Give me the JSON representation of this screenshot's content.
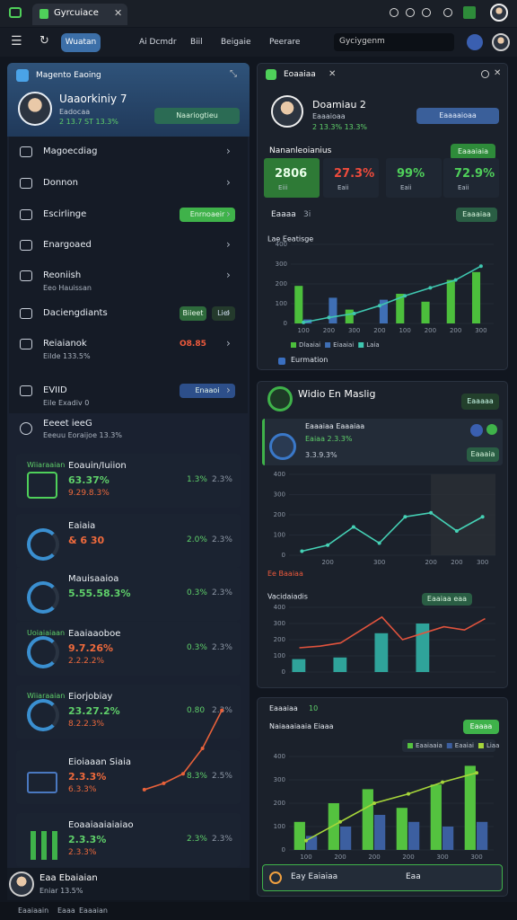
{
  "tab": {
    "title": "Gyrcuiace"
  },
  "nav": {
    "active": "Wuatan",
    "links": [
      "Ai Dcmdr",
      "Biil",
      "Beigaie",
      "Peerare"
    ],
    "search": "Gyciygenm"
  },
  "left_panel": {
    "title": "Magento Eaoing",
    "profile": {
      "name": "Uaaorkiniy 7",
      "line1": "Eadocaa",
      "line2": "2 13.7 ST 13.3%",
      "button": "Naariogtieu"
    },
    "menu": [
      {
        "label": "Magoecdiag"
      },
      {
        "label": "Donnon"
      },
      {
        "label": "Escirlinge",
        "badge": "Enrnoaeir"
      },
      {
        "label": "Enargoaed"
      },
      {
        "label": "Reoniish",
        "sub": "Eeo Hauissan"
      },
      {
        "label": "Daciengdiants",
        "badge": "Biieet",
        "badge2": "Liel"
      },
      {
        "label": "Reiaianok",
        "sub": "Eilde 133.5%",
        "value": "O8.85"
      },
      {
        "label": "EVIID",
        "sub": "Eile Exadiv 0",
        "badge": "Enaaoi"
      }
    ],
    "section": {
      "title": "Eeeet ieeG",
      "sub": "Eeeuu Eoraijoe 13.3%"
    },
    "cards": [
      {
        "tag": "Wiiaraaian",
        "title": "Eoauin/Iuiion",
        "value": "63.37%",
        "sub": "9.29.8.3%",
        "pct": "1.3%",
        "pct2": "2.3%"
      },
      {
        "title": "Eaiaia",
        "value": "& 6 30",
        "pct": "2.0%",
        "pct2": "2.3%"
      },
      {
        "title": "Mauisaaioa",
        "value": "5.55.58.3%",
        "pct": "0.3%",
        "pct2": "2.3%"
      },
      {
        "tag": "Uoiaiaiaan",
        "title": "Eaaiaaoboe",
        "value": "9.7.26%",
        "sub": "2.2.2.2%",
        "pct": "0.3%",
        "pct2": "2.3%"
      },
      {
        "tag": "Wiiaraaian",
        "title": "Eiorjobiay",
        "value": "23.27.2%",
        "sub": "8.2.2.3%",
        "pct": "0.80",
        "pct2": "2.3%"
      },
      {
        "title": "Eioiaaan Siaia",
        "value": "2.3.3%",
        "sub": "6.3.3%",
        "pct": "8.3%",
        "pct2": "2.5%"
      },
      {
        "title": "Eoaaiaaiaiaiao",
        "value": "2.3.3%",
        "sub": "2.3.3%",
        "pct": "2.3%",
        "pct2": "2.3%"
      }
    ],
    "user": {
      "name": "Eaa Ebaiaian",
      "sub": "Eniar 13.5%"
    }
  },
  "right_top": {
    "tab": "Eoaaiaa",
    "profile": {
      "name": "Doamiau 2",
      "line1": "Eaaaioaa",
      "line2": "2 13.3% 13.3%",
      "button": "Eaaaaioaa"
    },
    "stats_title": "Nananleoianius",
    "stats_button": "Eaaaiaia",
    "stats": [
      "2806",
      "27.3%",
      "99%",
      "72.9%"
    ],
    "stat_subs": [
      "Eiii",
      "Eaii",
      "Eaii",
      "Eaii"
    ],
    "stat_colors": [
      "#4fd05a",
      "#ef4b3c",
      "#4fd05a",
      "#4fd05a"
    ],
    "filter": "Eaaaa",
    "filter2": "3i",
    "filter_button": "Eaaaiaa",
    "footer": "Eurmation"
  },
  "right_mid": {
    "title": "Widio En Maslig",
    "button": "Eaaaaa",
    "row_title": "Eaaaiaa Eaaaiaa",
    "row_sub1": "Eaiaa 2.3.3%",
    "row_sub2": "3.3.9.3%",
    "row_button": "Eaaaia",
    "chart_note": "Ee Baaiaa",
    "legend_badge": "Eaaiaa eaa"
  },
  "right_bottom": {
    "tab": "Eaaaiaa",
    "tab2": "10",
    "title": "Naiaaaiaaia Eiaaa",
    "button": "Eaaaa",
    "footer": "Eay Eaiaiaa",
    "footer2": "Eaa"
  },
  "status": [
    "Eaaiaain",
    "Eaaa",
    "Eaaaian"
  ],
  "chart_data": [
    {
      "type": "bar",
      "title": "Lae Eeatisge",
      "categories": [
        "100",
        "200",
        "300",
        "200",
        "100",
        "200",
        "200",
        "300"
      ],
      "ylim": [
        0,
        400
      ],
      "yticks": [
        0,
        100,
        200,
        300,
        400
      ],
      "grid": true,
      "legend": "bottom",
      "markers": true,
      "series": [
        {
          "name": "Dlaaiai",
          "color": "#4cbf3c",
          "values": [
            190,
            null,
            70,
            null,
            150,
            110,
            220,
            260
          ]
        },
        {
          "name": "Eiaaiai",
          "color": "#3f6fb5",
          "values": [
            20,
            130,
            null,
            120,
            null,
            null,
            null,
            null
          ]
        },
        {
          "name": "Laia",
          "color": "#3fc7b0",
          "type": "line",
          "values": [
            5,
            30,
            50,
            90,
            140,
            180,
            220,
            290
          ]
        }
      ]
    },
    {
      "type": "line",
      "categories": [
        null,
        "200",
        null,
        "300",
        null,
        "200",
        "200",
        "300"
      ],
      "ylim": [
        0,
        400
      ],
      "yticks": [
        0,
        100,
        200,
        300,
        400
      ],
      "grid": true,
      "markers": true,
      "series": [
        {
          "color": "#45d1b5",
          "values": [
            20,
            50,
            140,
            60,
            190,
            210,
            120,
            190
          ]
        }
      ]
    },
    {
      "type": "bar",
      "title": "Vacidaiadis",
      "categories": [
        null,
        null,
        null,
        null,
        null,
        null,
        null,
        null,
        null,
        null
      ],
      "ylim": [
        0,
        400
      ],
      "yticks": [
        0,
        100,
        200,
        300,
        400
      ],
      "grid": true,
      "markers": false,
      "series": [
        {
          "color": "#2fa39a",
          "values": [
            80,
            null,
            90,
            null,
            240,
            null,
            300,
            null,
            null,
            null
          ]
        },
        {
          "color": "#e0533d",
          "type": "line",
          "values": [
            150,
            160,
            180,
            260,
            340,
            200,
            240,
            280,
            260,
            330
          ]
        }
      ]
    },
    {
      "type": "bar",
      "categories": [
        "100",
        "200",
        "200",
        "200",
        "300",
        "300"
      ],
      "ylim": [
        0,
        400
      ],
      "yticks": [
        0,
        100,
        200,
        300,
        400
      ],
      "grid": true,
      "legend": "top-right",
      "markers": true,
      "series": [
        {
          "name": "Eaaiaaia",
          "color": "#54c23f",
          "values": [
            120,
            200,
            260,
            180,
            280,
            360
          ]
        },
        {
          "name": "Eaaiai",
          "color": "#3c5fa0",
          "values": [
            60,
            100,
            150,
            120,
            100,
            120
          ]
        },
        {
          "name": "Liaa",
          "color": "#a6d63a",
          "type": "line",
          "values": [
            40,
            120,
            200,
            240,
            290,
            330
          ]
        }
      ]
    },
    {
      "type": "line",
      "ylim": [
        0,
        300
      ],
      "markers": true,
      "series": [
        {
          "color": "#e8613a",
          "values": [
            20,
            40,
            70,
            150,
            270
          ]
        }
      ]
    }
  ]
}
